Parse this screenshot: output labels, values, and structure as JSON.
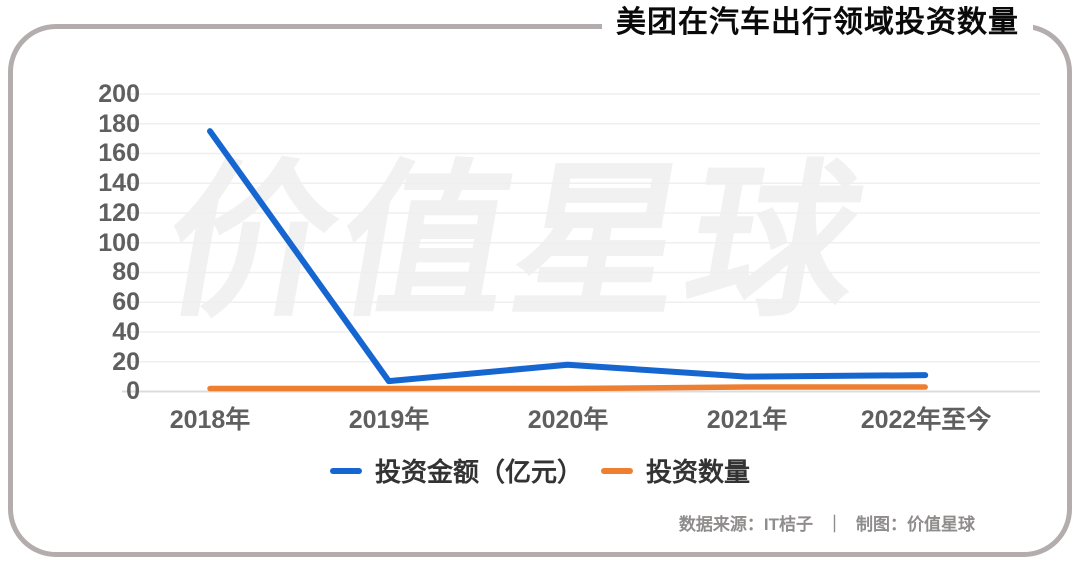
{
  "title": "美团在汽车出行领域投资数量",
  "watermark": "价值星球",
  "footer": {
    "source": "数据来源：IT桔子",
    "separator": "｜",
    "credit": "制图：价值星球"
  },
  "chart_data": {
    "type": "line",
    "title": "美团在汽车出行领域投资数量",
    "categories": [
      "2018年",
      "2019年",
      "2020年",
      "2021年",
      "2022年至今"
    ],
    "series": [
      {
        "name": "投资金额（亿元）",
        "values": [
          175,
          7,
          18,
          10,
          11
        ],
        "color": "#1566d1"
      },
      {
        "name": "投资数量",
        "values": [
          2,
          2,
          2,
          3,
          3
        ],
        "color": "#ee7e30"
      }
    ],
    "ylim": [
      0,
      200
    ],
    "yticks": [
      0,
      20,
      40,
      60,
      80,
      100,
      120,
      140,
      160,
      180,
      200
    ],
    "xlabel": "",
    "ylabel": "",
    "grid": "horizontal",
    "legend_position": "bottom"
  }
}
